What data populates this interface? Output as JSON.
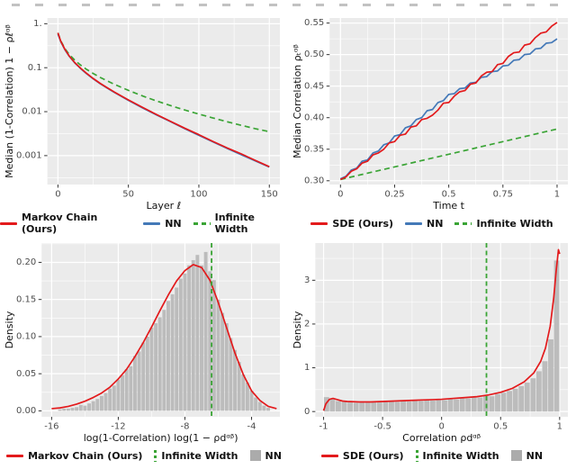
{
  "colors": {
    "red": "#e31a1c",
    "blue": "#4479b8",
    "green": "#3aa435",
    "hist": "#bcbcbc",
    "hist_legend": "#ababab",
    "panel": "#ebebeb",
    "grid": "#ffffff",
    "tick": "#4d4d4d",
    "label": "#111111"
  },
  "chart_data": [
    {
      "id": "layer-decay",
      "type": "line",
      "xlabel": "Layer ℓ",
      "ylabel": "Median (1-Correlation) 1 − ρℓᵅᵝ",
      "x_range": [
        -7.5,
        157.5
      ],
      "y_scale": "log",
      "y_range": [
        0.00022,
        1.35
      ],
      "x_ticks": [
        0,
        50,
        100,
        150
      ],
      "x_tick_labels": [
        "0",
        "50",
        "100",
        "150"
      ],
      "y_ticks": [
        1,
        0.1,
        0.01,
        0.001
      ],
      "y_tick_labels": [
        "1.",
        "0.1",
        "0.01",
        "0.001"
      ],
      "series": [
        {
          "name": "Infinite Width",
          "color": "green",
          "dash": true,
          "x": [
            0,
            2,
            5,
            8,
            12,
            16,
            20,
            25,
            30,
            35,
            40,
            50,
            60,
            70,
            80,
            90,
            100,
            110,
            120,
            130,
            140,
            150
          ],
          "y": [
            0.62,
            0.41,
            0.27,
            0.2,
            0.148,
            0.115,
            0.093,
            0.074,
            0.06,
            0.05,
            0.042,
            0.0305,
            0.0228,
            0.0175,
            0.0137,
            0.0109,
            0.0088,
            0.0072,
            0.0059,
            0.0049,
            0.0041,
            0.0035
          ]
        },
        {
          "name": "NN",
          "color": "blue",
          "dash": false,
          "x": [
            0,
            2,
            5,
            8,
            12,
            16,
            20,
            25,
            30,
            35,
            40,
            50,
            60,
            70,
            80,
            90,
            100,
            110,
            120,
            130,
            140,
            150
          ],
          "y": [
            0.58,
            0.39,
            0.255,
            0.182,
            0.128,
            0.096,
            0.0745,
            0.0558,
            0.0432,
            0.0343,
            0.0275,
            0.0181,
            0.0122,
            0.0084,
            0.0059,
            0.0041,
            0.0029,
            0.00205,
            0.00146,
            0.00105,
            0.00076,
            0.00055
          ]
        },
        {
          "name": "Markov Chain (Ours)",
          "color": "red",
          "dash": false,
          "x": [
            0,
            2,
            5,
            8,
            12,
            16,
            20,
            25,
            30,
            35,
            40,
            50,
            60,
            70,
            80,
            90,
            100,
            110,
            120,
            130,
            140,
            150
          ],
          "y": [
            0.62,
            0.4,
            0.26,
            0.185,
            0.13,
            0.098,
            0.076,
            0.057,
            0.044,
            0.035,
            0.028,
            0.0185,
            0.0125,
            0.0086,
            0.006,
            0.0042,
            0.003,
            0.0021,
            0.0015,
            0.0011,
            0.00078,
            0.00056
          ]
        }
      ],
      "legend": [
        {
          "label": "Markov Chain (Ours)",
          "color": "red",
          "marker": "line"
        },
        {
          "label": "NN",
          "color": "blue",
          "marker": "line"
        },
        {
          "label": "Infinite Width",
          "color": "green",
          "marker": "dash"
        }
      ]
    },
    {
      "id": "time-correlation",
      "type": "line",
      "xlabel": "Time t",
      "ylabel": "Median Correlation ρₜᵅᵝ",
      "x_range": [
        -0.05,
        1.05
      ],
      "y_range": [
        0.294,
        0.558
      ],
      "x_ticks": [
        0,
        0.25,
        0.5,
        0.75,
        1
      ],
      "x_tick_labels": [
        "0",
        "0.25",
        "0.5",
        "0.75",
        "1"
      ],
      "y_ticks": [
        0.3,
        0.35,
        0.4,
        0.45,
        0.5,
        0.55
      ],
      "y_tick_labels": [
        "0.30",
        "0.35",
        "0.40",
        "0.45",
        "0.50",
        "0.55"
      ],
      "series": [
        {
          "name": "Infinite Width",
          "color": "green",
          "dash": true,
          "x": [
            0,
            1
          ],
          "y": [
            0.302,
            0.382
          ]
        },
        {
          "name": "NN",
          "color": "blue",
          "dash": false,
          "x_start": 0,
          "x_step": 0.025,
          "y": [
            0.303,
            0.307,
            0.317,
            0.32,
            0.331,
            0.333,
            0.344,
            0.347,
            0.357,
            0.36,
            0.371,
            0.373,
            0.384,
            0.387,
            0.397,
            0.4,
            0.411,
            0.413,
            0.424,
            0.427,
            0.437,
            0.438,
            0.446,
            0.447,
            0.455,
            0.456,
            0.464,
            0.465,
            0.473,
            0.474,
            0.482,
            0.483,
            0.491,
            0.492,
            0.5,
            0.501,
            0.509,
            0.51,
            0.518,
            0.519,
            0.525
          ]
        },
        {
          "name": "SDE (Ours)",
          "color": "red",
          "dash": false,
          "x_start": 0,
          "x_step": 0.025,
          "y": [
            0.302,
            0.306,
            0.315,
            0.319,
            0.328,
            0.331,
            0.341,
            0.344,
            0.35,
            0.36,
            0.362,
            0.372,
            0.374,
            0.385,
            0.387,
            0.397,
            0.399,
            0.404,
            0.412,
            0.423,
            0.424,
            0.434,
            0.441,
            0.443,
            0.453,
            0.455,
            0.466,
            0.472,
            0.473,
            0.484,
            0.486,
            0.497,
            0.503,
            0.504,
            0.515,
            0.517,
            0.527,
            0.534,
            0.536,
            0.545,
            0.551
          ]
        }
      ],
      "legend": [
        {
          "label": "SDE (Ours)",
          "color": "red",
          "marker": "line"
        },
        {
          "label": "NN",
          "color": "blue",
          "marker": "line"
        },
        {
          "label": "Infinite Width",
          "color": "green",
          "marker": "dash"
        }
      ]
    },
    {
      "id": "log-correlation-density",
      "type": "hist-line",
      "xlabel": "log(1-Correlation) log(1 − ρdᵅᵝ)",
      "ylabel": "Density",
      "x_range": [
        -16.6,
        -2.3
      ],
      "y_range": [
        -0.008,
        0.226
      ],
      "x_ticks": [
        -16,
        -12,
        -8,
        -4
      ],
      "x_tick_labels": [
        "-16",
        "-12",
        "-8",
        "-4"
      ],
      "y_ticks": [
        0,
        0.05,
        0.1,
        0.15,
        0.2
      ],
      "y_tick_labels": [
        "0.00",
        "0.05",
        "0.10",
        "0.15",
        "0.20"
      ],
      "hist": {
        "color": "hist",
        "centers_start": -15.5,
        "bin_step": 0.25,
        "values": [
          0.002,
          0.003,
          0.003,
          0.004,
          0.005,
          0.008,
          0.007,
          0.01,
          0.013,
          0.016,
          0.02,
          0.024,
          0.03,
          0.034,
          0.042,
          0.048,
          0.056,
          0.06,
          0.074,
          0.08,
          0.092,
          0.1,
          0.112,
          0.118,
          0.126,
          0.136,
          0.148,
          0.157,
          0.166,
          0.178,
          0.185,
          0.196,
          0.203,
          0.21,
          0.196,
          0.214,
          0.188,
          0.176,
          0.15,
          0.132,
          0.118,
          0.098,
          0.082,
          0.066,
          0.049,
          0.038,
          0.027,
          0.018,
          0.012,
          0.007,
          0.004
        ]
      },
      "vline": {
        "x": -6.4,
        "color": "green"
      },
      "series": [
        {
          "name": "Markov Chain (Ours)",
          "color": "red",
          "dash": false,
          "x": [
            -16,
            -15.5,
            -15,
            -14.5,
            -14,
            -13.5,
            -13,
            -12.5,
            -12,
            -11.5,
            -11,
            -10.5,
            -10,
            -9.5,
            -9,
            -8.5,
            -8,
            -7.5,
            -7,
            -6.5,
            -6,
            -5.5,
            -5,
            -4.5,
            -4,
            -3.5,
            -3,
            -2.5
          ],
          "y": [
            0.003,
            0.004,
            0.006,
            0.009,
            0.013,
            0.018,
            0.024,
            0.032,
            0.043,
            0.056,
            0.073,
            0.092,
            0.113,
            0.135,
            0.156,
            0.175,
            0.189,
            0.197,
            0.193,
            0.176,
            0.146,
            0.112,
            0.078,
            0.049,
            0.027,
            0.014,
            0.006,
            0.003
          ]
        }
      ],
      "legend": [
        {
          "label": "Markov Chain (Ours)",
          "color": "red",
          "marker": "line"
        },
        {
          "label": "Infinite Width",
          "color": "green",
          "marker": "vdash"
        },
        {
          "label": "NN",
          "color": "hist_legend",
          "marker": "box"
        }
      ]
    },
    {
      "id": "correlation-density",
      "type": "hist-line",
      "xlabel": "Correlation ρdᵅᵝ",
      "ylabel": "Density",
      "x_range": [
        -1.07,
        1.07
      ],
      "y_range": [
        -0.12,
        3.85
      ],
      "x_ticks": [
        -1,
        -0.5,
        0,
        0.5,
        1
      ],
      "x_tick_labels": [
        "-1",
        "-0.5",
        "0",
        "0.5",
        "1"
      ],
      "y_ticks": [
        0,
        1,
        2,
        3
      ],
      "y_tick_labels": [
        "0",
        "1",
        "2",
        "3"
      ],
      "hist": {
        "color": "hist",
        "centers_start": -0.975,
        "bin_step": 0.05,
        "values": [
          0.33,
          0.29,
          0.24,
          0.22,
          0.24,
          0.2,
          0.22,
          0.21,
          0.23,
          0.21,
          0.22,
          0.24,
          0.22,
          0.25,
          0.23,
          0.26,
          0.24,
          0.27,
          0.25,
          0.28,
          0.26,
          0.29,
          0.28,
          0.31,
          0.3,
          0.33,
          0.32,
          0.36,
          0.35,
          0.4,
          0.43,
          0.47,
          0.52,
          0.58,
          0.66,
          0.76,
          0.92,
          1.15,
          1.65,
          3.45
        ]
      },
      "vline": {
        "x": 0.38,
        "color": "green"
      },
      "series": [
        {
          "name": "SDE (Ours)",
          "color": "red",
          "dash": false,
          "x": [
            -1,
            -0.98,
            -0.95,
            -0.92,
            -0.88,
            -0.84,
            -0.8,
            -0.7,
            -0.6,
            -0.5,
            -0.4,
            -0.3,
            -0.2,
            -0.1,
            0,
            0.1,
            0.2,
            0.3,
            0.4,
            0.5,
            0.6,
            0.7,
            0.78,
            0.84,
            0.88,
            0.92,
            0.95,
            0.97,
            0.99,
            1.0
          ],
          "y": [
            0.02,
            0.18,
            0.28,
            0.3,
            0.27,
            0.24,
            0.23,
            0.22,
            0.22,
            0.23,
            0.24,
            0.25,
            0.26,
            0.27,
            0.28,
            0.3,
            0.32,
            0.34,
            0.38,
            0.44,
            0.53,
            0.68,
            0.88,
            1.15,
            1.45,
            1.95,
            2.6,
            3.2,
            3.7,
            3.6
          ]
        }
      ],
      "legend": [
        {
          "label": "SDE (Ours)",
          "color": "red",
          "marker": "line"
        },
        {
          "label": "Infinite Width",
          "color": "green",
          "marker": "vdash"
        },
        {
          "label": "NN",
          "color": "hist_legend",
          "marker": "box"
        }
      ]
    }
  ]
}
